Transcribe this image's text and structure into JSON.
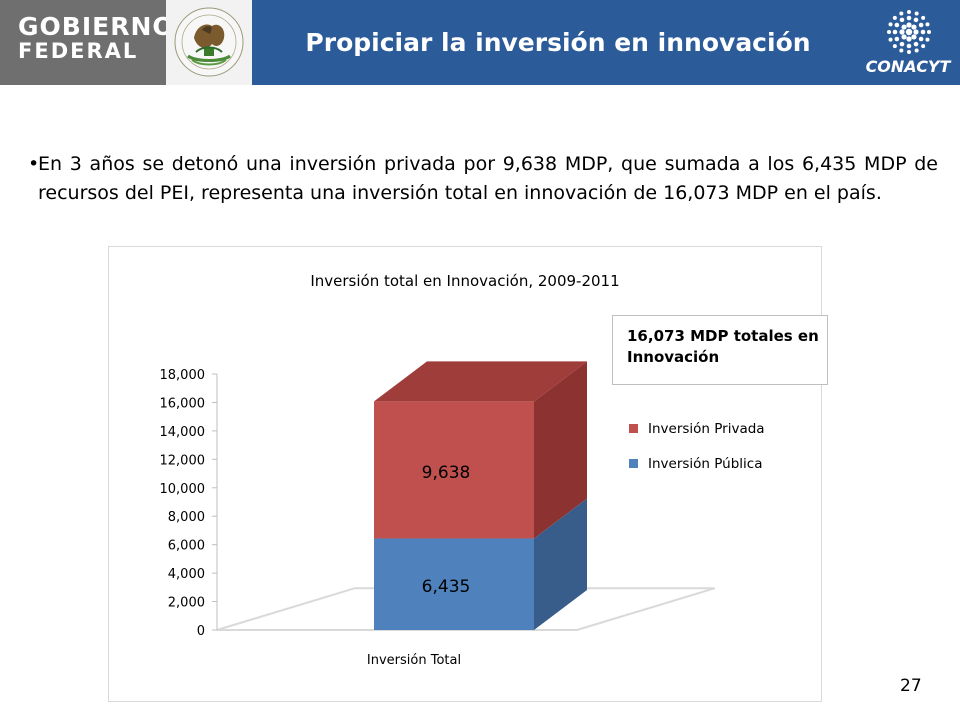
{
  "header": {
    "org_line1": "GOBIERNO",
    "org_line2": "FEDERAL",
    "seal_text": "ESTADOS UNIDOS MEXICANOS",
    "title": "Propiciar la inversión en innovación",
    "conacyt": "CONACYT",
    "colors": {
      "bar": "#2c5b9a",
      "gray": "#6f6f6f"
    }
  },
  "body": {
    "bullet": "En 3 años se detonó una inversión privada por 9,638 MDP, que sumada a los 6,435 MDP de recursos del PEI, representa una inversión total en innovación de 16,073 MDP en el país."
  },
  "callout": "16,073 MDP totales en Innovación",
  "page_number": "27",
  "chart_data": {
    "type": "bar",
    "stacked": true,
    "three_d": true,
    "title": "Inversión total en Innovación, 2009-2011",
    "categories": [
      "Inversión Total"
    ],
    "series": [
      {
        "name": "Inversión Pública",
        "values": [
          6435
        ],
        "color": "#4f81bd"
      },
      {
        "name": "Inversión Privada",
        "values": [
          9638
        ],
        "color": "#c0504d"
      }
    ],
    "data_labels": [
      "6,435",
      "9,638"
    ],
    "ylim": [
      0,
      18000
    ],
    "yticks": [
      "0",
      "2,000",
      "4,000",
      "6,000",
      "8,000",
      "10,000",
      "12,000",
      "14,000",
      "16,000",
      "18,000"
    ],
    "legend_position": "right",
    "grid": false
  }
}
